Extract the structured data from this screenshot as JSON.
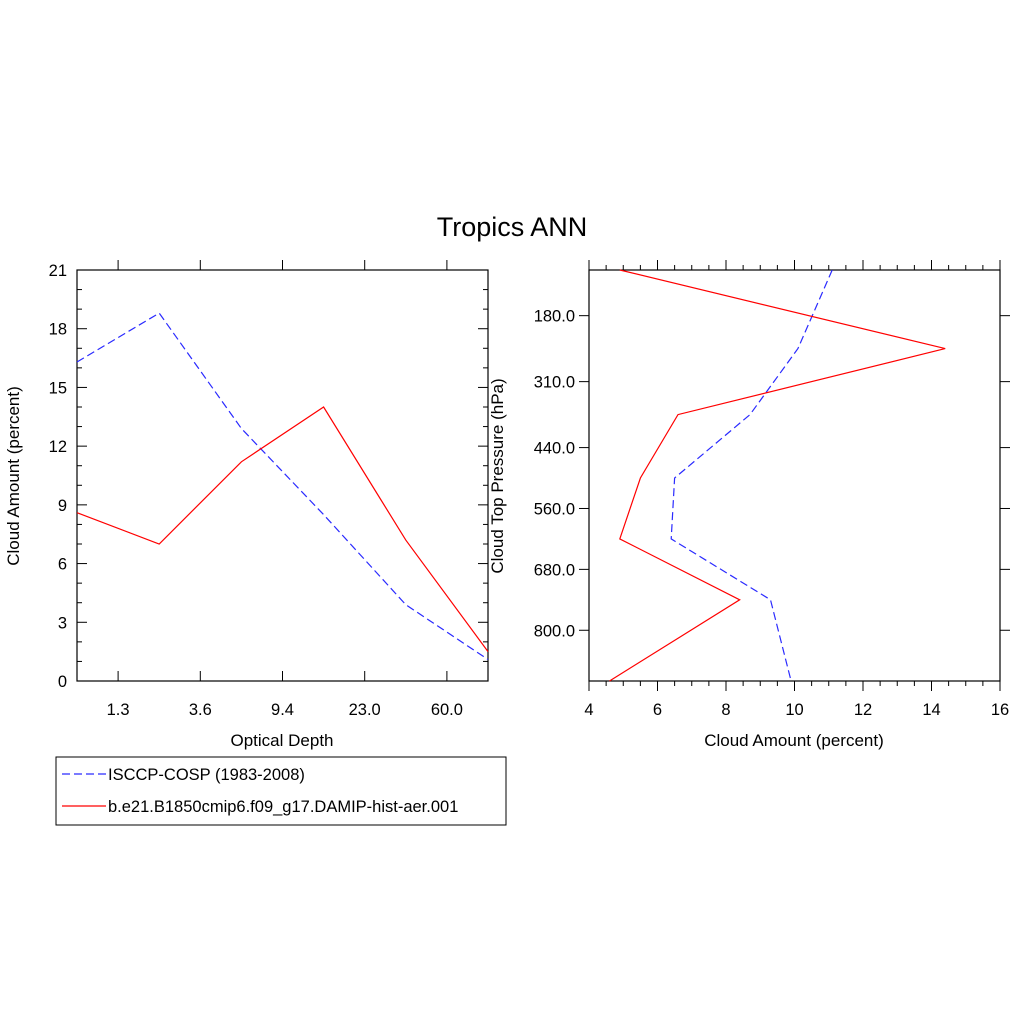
{
  "chart_data": {
    "title": "Tropics ANN",
    "legend": {
      "placement": "bottom-left",
      "entries": [
        {
          "name": "ISCCP-COSP (1983-2008)",
          "color": "#2a2aff",
          "style": "dashed"
        },
        {
          "name": "b.e21.B1850cmip6.f09_g17.DAMIP-hist-aer.001",
          "color": "#ff0000",
          "style": "solid"
        }
      ]
    },
    "panels": [
      {
        "type": "line",
        "xlabel": "Optical Depth",
        "ylabel": "Cloud Amount (percent)",
        "x_tick_labels": [
          "1.3",
          "3.6",
          "9.4",
          "23.0",
          "60.0"
        ],
        "y_tick_labels": [
          "0",
          "3",
          "6",
          "9",
          "12",
          "15",
          "18",
          "21"
        ],
        "ylim": [
          0,
          21
        ],
        "series": [
          {
            "name": "ISCCP-COSP (1983-2008)",
            "color": "#2a2aff",
            "style": "dashed",
            "x": [
              "0.3",
              "1.3",
              "2.5",
              "3.6",
              "6.5",
              "9.4",
              "16.0",
              "23.0",
              "41.0",
              "60.0",
              "100.0"
            ],
            "y": [
              16.3,
              null,
              18.8,
              null,
              12.9,
              null,
              8.5,
              null,
              3.9,
              null,
              1.1
            ]
          },
          {
            "name": "b.e21.B1850cmip6.f09_g17.DAMIP-hist-aer.001",
            "color": "#ff0000",
            "style": "solid",
            "x": [
              "0.3",
              "1.3",
              "2.5",
              "3.6",
              "6.5",
              "9.4",
              "16.0",
              "23.0",
              "41.0",
              "60.0",
              "100.0"
            ],
            "y": [
              8.6,
              null,
              7.0,
              null,
              11.2,
              null,
              14.0,
              null,
              7.2,
              null,
              1.5
            ]
          }
        ]
      },
      {
        "type": "line",
        "xlabel": "Cloud Amount (percent)",
        "ylabel": "Cloud Top Pressure (hPa)",
        "x_tick_labels": [
          "4",
          "6",
          "8",
          "10",
          "12",
          "14",
          "16"
        ],
        "xlim": [
          4,
          16
        ],
        "y_tick_labels": [
          "180.0",
          "310.0",
          "440.0",
          "560.0",
          "680.0",
          "800.0"
        ],
        "ylim": [
          90,
          900
        ],
        "series": [
          {
            "name": "ISCCP-COSP (1983-2008)",
            "color": "#2a2aff",
            "style": "dashed",
            "pressure": [
              90,
              245,
              375,
              500,
              620,
              740,
              900
            ],
            "cloud_amount": [
              11.1,
              10.1,
              8.7,
              6.5,
              6.4,
              9.3,
              9.9
            ]
          },
          {
            "name": "b.e21.B1850cmip6.f09_g17.DAMIP-hist-aer.001",
            "color": "#ff0000",
            "style": "solid",
            "pressure": [
              90,
              245,
              375,
              500,
              620,
              740,
              900
            ],
            "cloud_amount": [
              4.9,
              14.4,
              6.6,
              5.5,
              4.9,
              8.4,
              4.6
            ]
          }
        ]
      }
    ]
  }
}
